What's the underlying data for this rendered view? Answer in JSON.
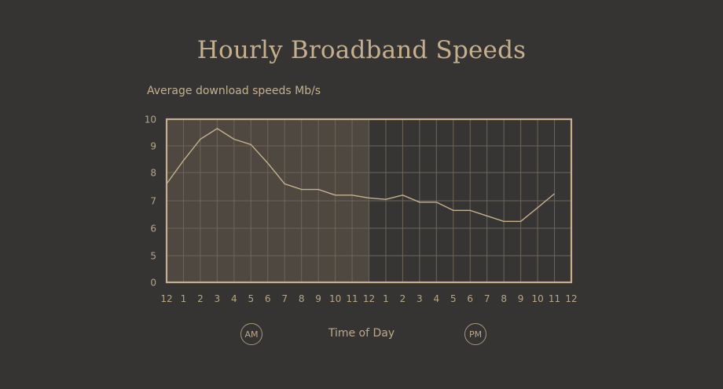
{
  "header": {
    "title": "Hourly Broadband Speeds",
    "subtitle": "Average download speeds Mb/s"
  },
  "axis": {
    "x_label": "Time of Day",
    "am_badge": "AM",
    "pm_badge": "PM",
    "y_ticks": [
      "10",
      "9",
      "8",
      "7",
      "6",
      "5",
      "0"
    ],
    "x_ticks": [
      "12",
      "1",
      "2",
      "3",
      "4",
      "5",
      "6",
      "7",
      "8",
      "9",
      "10",
      "11",
      "12",
      "1",
      "2",
      "3",
      "4",
      "5",
      "6",
      "7",
      "8",
      "9",
      "10",
      "11",
      "12"
    ]
  },
  "colors": {
    "background": "#353433",
    "am_shade": "#4e4840",
    "grid": "#6e6557",
    "border": "#c4b08e",
    "line": "#c4b08e",
    "text": "#c4b08e"
  },
  "chart_data": {
    "type": "line",
    "title": "Hourly Broadband Speeds",
    "subtitle": "Average download speeds Mb/s",
    "xlabel": "Time of Day",
    "ylabel": "Average download speeds Mb/s",
    "categories": [
      "12 AM",
      "1 AM",
      "2 AM",
      "3 AM",
      "4 AM",
      "5 AM",
      "6 AM",
      "7 AM",
      "8 AM",
      "9 AM",
      "10 AM",
      "11 AM",
      "12 PM",
      "1 PM",
      "2 PM",
      "3 PM",
      "4 PM",
      "5 PM",
      "6 PM",
      "7 PM",
      "8 PM",
      "9 PM",
      "10 PM",
      "11 PM"
    ],
    "series": [
      {
        "name": "Average download speed (Mb/s)",
        "values": [
          7.6,
          8.45,
          9.25,
          9.65,
          9.25,
          9.05,
          8.35,
          7.6,
          7.4,
          7.4,
          7.2,
          7.2,
          7.1,
          7.05,
          7.2,
          6.95,
          6.95,
          6.65,
          6.65,
          6.45,
          6.25,
          6.25,
          6.75,
          7.25
        ]
      }
    ],
    "y_tick_labels": [
      "0",
      "5",
      "6",
      "7",
      "8",
      "9",
      "10"
    ],
    "y_axis_note": "Axis is broken: bottom interval spans 0 to 5; remaining intervals are 1 Mb/s each",
    "ylim": [
      0,
      10
    ],
    "x_tick_labels": [
      "12",
      "1",
      "2",
      "3",
      "4",
      "5",
      "6",
      "7",
      "8",
      "9",
      "10",
      "11",
      "12",
      "1",
      "2",
      "3",
      "4",
      "5",
      "6",
      "7",
      "8",
      "9",
      "10",
      "11",
      "12"
    ],
    "annotations": [
      "AM (shaded region 12-12)",
      "PM"
    ],
    "grid": true,
    "legend": "none"
  }
}
